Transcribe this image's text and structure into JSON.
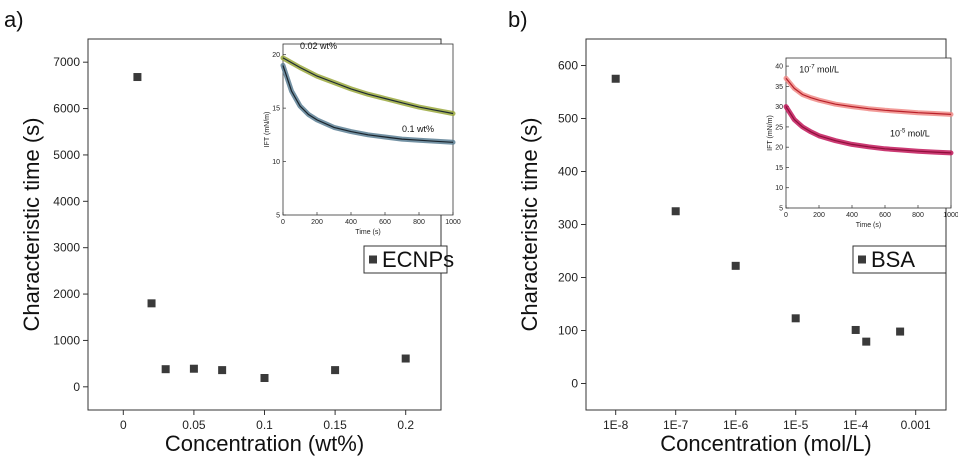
{
  "chart_data": [
    {
      "panel": "a)",
      "type": "scatter",
      "xlabel": "Concentration (wt%)",
      "ylabel": "Characteristic time (s)",
      "xlim": [
        -0.025,
        0.225
      ],
      "ylim": [
        -500,
        7500
      ],
      "xticks": [
        0,
        0.05,
        0.1,
        0.15,
        0.2
      ],
      "xtick_labels": [
        "0",
        "0.05",
        "0.1",
        "0.15",
        "0.2"
      ],
      "yticks": [
        0,
        1000,
        2000,
        3000,
        4000,
        5000,
        6000,
        7000
      ],
      "ytick_labels": [
        "0",
        "1000",
        "2000",
        "3000",
        "4000",
        "5000",
        "6000",
        "7000"
      ],
      "legend": "ECNPs",
      "legend_position": "inside right",
      "series": [
        {
          "name": "ECNPs",
          "x": [
            0.01,
            0.02,
            0.03,
            0.05,
            0.07,
            0.1,
            0.15,
            0.2
          ],
          "y": [
            6680,
            1800,
            380,
            390,
            360,
            190,
            360,
            610
          ]
        }
      ],
      "inset": {
        "type": "line",
        "xlabel": "Time (s)",
        "ylabel": "IFT (mN/m)",
        "xlim": [
          0,
          1000
        ],
        "ylim": [
          5,
          21
        ],
        "xticks": [
          0,
          200,
          400,
          600,
          800,
          1000
        ],
        "yticks": [
          5,
          10,
          15,
          20
        ],
        "curves": [
          {
            "label": "0.02 wt%",
            "data_color": "#9aa83c",
            "fit_color": "#1d2a33",
            "x": [
              0,
              100,
              200,
              300,
              400,
              500,
              600,
              700,
              800,
              900,
              1000
            ],
            "y": [
              19.7,
              18.8,
              18.0,
              17.4,
              16.8,
              16.3,
              15.9,
              15.5,
              15.1,
              14.8,
              14.5
            ]
          },
          {
            "label": "0.1 wt%",
            "data_color": "#5c7f94",
            "fit_color": "#1a242c",
            "x": [
              0,
              50,
              100,
              150,
              200,
              300,
              400,
              500,
              600,
              700,
              800,
              900,
              1000
            ],
            "y": [
              19.0,
              16.6,
              15.2,
              14.4,
              13.9,
              13.2,
              12.8,
              12.5,
              12.3,
              12.1,
              12.0,
              11.9,
              11.8
            ]
          }
        ]
      }
    },
    {
      "panel": "b)",
      "type": "scatter",
      "xlabel": "Concentration (mol/L)",
      "ylabel": "Characteristic time (s)",
      "xscale": "log",
      "xlim": [
        3.2e-09,
        0.0032
      ],
      "ylim": [
        -50,
        650
      ],
      "xticks": [
        1e-08,
        1e-07,
        1e-06,
        1e-05,
        0.0001,
        0.001
      ],
      "xtick_labels": [
        "1E-8",
        "1E-7",
        "1E-6",
        "1E-5",
        "1E-4",
        "0.001"
      ],
      "yticks": [
        0,
        100,
        200,
        300,
        400,
        500,
        600
      ],
      "ytick_labels": [
        "0",
        "100",
        "200",
        "300",
        "400",
        "500",
        "600"
      ],
      "legend": "BSA",
      "legend_position": "inside right",
      "series": [
        {
          "name": "BSA",
          "x": [
            1e-08,
            1e-07,
            1e-06,
            1e-05,
            0.0001,
            0.00015,
            0.00055
          ],
          "y": [
            575,
            325,
            222,
            123,
            101,
            79,
            98
          ]
        }
      ],
      "inset": {
        "type": "line",
        "xlabel": "Time (s)",
        "ylabel": "IFT (mN/m)",
        "xlim": [
          0,
          1000
        ],
        "ylim": [
          5,
          42
        ],
        "xticks": [
          0,
          200,
          400,
          600,
          800,
          1000
        ],
        "yticks": [
          5,
          10,
          15,
          20,
          25,
          30,
          35,
          40
        ],
        "curves": [
          {
            "label": "10-7 mol/L",
            "label_base": "10",
            "label_exp": "-7",
            "label_unit": " mol/L",
            "data_color": "#f08a86",
            "fit_color": "#b8202a",
            "x": [
              0,
              50,
              100,
              150,
              200,
              300,
              400,
              500,
              600,
              700,
              800,
              900,
              1000
            ],
            "y": [
              37.0,
              34.5,
              33.0,
              32.2,
              31.6,
              30.6,
              30.0,
              29.5,
              29.1,
              28.8,
              28.5,
              28.3,
              28.1
            ]
          },
          {
            "label": "10-5 mol/L",
            "label_base": "10",
            "label_exp": "-5",
            "label_unit": " mol/L",
            "data_color": "#c2185b",
            "fit_color": "#8e0f3a",
            "x": [
              0,
              50,
              100,
              150,
              200,
              300,
              400,
              500,
              600,
              700,
              800,
              900,
              1000
            ],
            "y": [
              30.0,
              26.8,
              25.0,
              23.8,
              22.8,
              21.6,
              20.7,
              20.1,
              19.6,
              19.3,
              19.0,
              18.8,
              18.6
            ]
          }
        ]
      }
    }
  ]
}
